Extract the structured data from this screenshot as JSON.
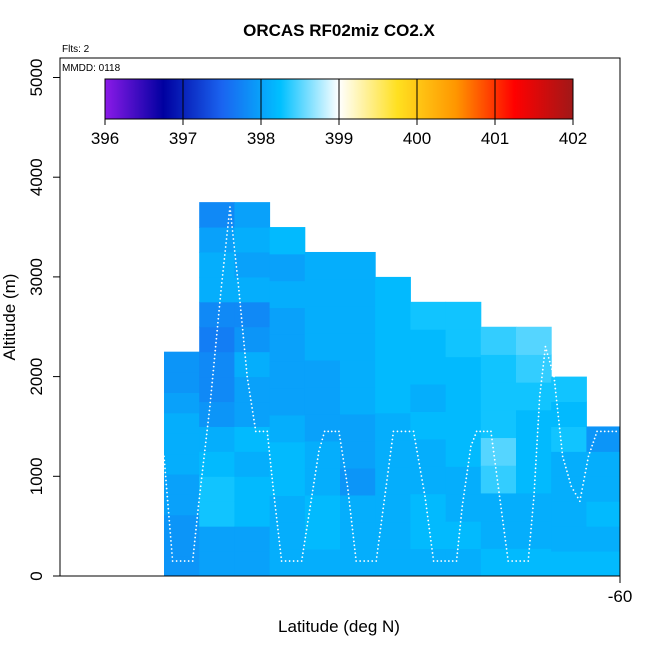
{
  "chart_data": {
    "type": "heatmap",
    "title": "ORCAS RF02miz CO2.X",
    "xlabel": "Latitude (deg N)",
    "ylabel": "Altitude (m)",
    "flights_label": "Flts: 2",
    "date_label": "MMDD: 0118",
    "x_ticks": [
      "-60"
    ],
    "y_ticks": [
      0,
      1000,
      2000,
      3000,
      4000,
      5000
    ],
    "ylim": [
      0,
      5200
    ],
    "colorbar": {
      "min": 396,
      "max": 402,
      "tick_labels": [
        "396",
        "397",
        "398",
        "399",
        "400",
        "401",
        "402"
      ],
      "stops": [
        "#8b1ae8",
        "#0000a0",
        "#1a64f0",
        "#00c0ff",
        "#ffffff",
        "#ffe020",
        "#ff9600",
        "#ff0000",
        "#a01818"
      ]
    },
    "columns": [
      {
        "top": 2250,
        "cells": [
          397.9,
          397.9,
          397.9,
          398.0,
          398.0,
          398.1,
          398.1,
          398.1,
          398.0,
          397.9,
          397.9
        ]
      },
      {
        "top": 3750,
        "cells": [
          398.0,
          398.0,
          398.3,
          398.3,
          398.2,
          398.1,
          397.9,
          397.8,
          397.8,
          397.7,
          397.8,
          398.1,
          398.1,
          398.0,
          397.8
        ]
      },
      {
        "top": 3750,
        "cells": [
          398.0,
          398.0,
          398.2,
          398.2,
          398.1,
          398.2,
          398.0,
          398.0,
          398.1,
          397.9,
          397.8,
          398.1,
          398.0,
          398.1,
          398.0
        ]
      },
      {
        "top": 3500,
        "cells": [
          398.1,
          398.1,
          398.1,
          398.2,
          398.2,
          398.1,
          398.0,
          398.0,
          398.0,
          398.0,
          398.1,
          398.0,
          398.2
        ]
      },
      {
        "top": 3250,
        "cells": [
          398.1,
          398.2,
          398.2,
          398.1,
          398.1,
          398.0,
          398.0,
          398.0,
          398.1,
          398.1,
          398.1,
          398.1
        ]
      },
      {
        "top": 3250,
        "cells": [
          398.1,
          398.1,
          398.1,
          397.9,
          398.0,
          398.0,
          398.1,
          398.1,
          398.1,
          398.1,
          398.1,
          398.1
        ]
      },
      {
        "top": 3000,
        "cells": [
          398.1,
          398.1,
          398.1,
          398.1,
          398.1,
          398.1,
          398.2,
          398.2,
          398.2,
          398.2,
          398.2
        ]
      },
      {
        "top": 2750,
        "cells": [
          398.1,
          398.2,
          398.2,
          398.1,
          398.1,
          398.2,
          398.1,
          398.2,
          398.2,
          398.3
        ]
      },
      {
        "top": 2750,
        "cells": [
          398.1,
          398.2,
          398.1,
          398.1,
          398.2,
          398.2,
          398.2,
          398.2,
          398.3,
          398.3
        ]
      },
      {
        "top": 2500,
        "cells": [
          398.2,
          398.1,
          398.1,
          398.4,
          398.5,
          398.3,
          398.3,
          398.3,
          398.4
        ]
      },
      {
        "top": 2500,
        "cells": [
          398.2,
          398.1,
          398.1,
          398.2,
          398.2,
          398.2,
          398.3,
          398.4,
          398.5
        ]
      },
      {
        "top": 2000,
        "cells": [
          398.2,
          398.1,
          398.1,
          398.1,
          398.1,
          398.3,
          398.2,
          398.3
        ]
      },
      {
        "top": 1500,
        "cells": [
          398.2,
          398.1,
          398.2,
          398.1,
          398.1,
          397.9
        ]
      }
    ],
    "flight_track": [
      [
        0.0,
        1200
      ],
      [
        0.03,
        150
      ],
      [
        0.1,
        150
      ],
      [
        0.12,
        700
      ],
      [
        0.16,
        1700
      ],
      [
        0.2,
        2900
      ],
      [
        0.23,
        3700
      ],
      [
        0.26,
        2900
      ],
      [
        0.29,
        2000
      ],
      [
        0.32,
        1450
      ],
      [
        0.36,
        1450
      ],
      [
        0.38,
        900
      ],
      [
        0.41,
        150
      ],
      [
        0.48,
        150
      ],
      [
        0.51,
        700
      ],
      [
        0.54,
        1250
      ],
      [
        0.56,
        1450
      ],
      [
        0.61,
        1450
      ],
      [
        0.64,
        900
      ],
      [
        0.67,
        150
      ],
      [
        0.74,
        150
      ],
      [
        0.77,
        800
      ],
      [
        0.8,
        1450
      ],
      [
        0.87,
        1450
      ],
      [
        0.91,
        800
      ],
      [
        0.94,
        150
      ],
      [
        1.02,
        150
      ],
      [
        1.04,
        700
      ],
      [
        1.07,
        1300
      ],
      [
        1.09,
        1450
      ],
      [
        1.14,
        1450
      ],
      [
        1.17,
        800
      ],
      [
        1.2,
        150
      ],
      [
        1.27,
        150
      ],
      [
        1.29,
        800
      ],
      [
        1.31,
        1800
      ],
      [
        1.33,
        2300
      ],
      [
        1.36,
        2000
      ],
      [
        1.39,
        1200
      ],
      [
        1.42,
        900
      ],
      [
        1.45,
        750
      ],
      [
        1.48,
        1200
      ],
      [
        1.51,
        1450
      ],
      [
        1.59,
        1450
      ]
    ]
  }
}
